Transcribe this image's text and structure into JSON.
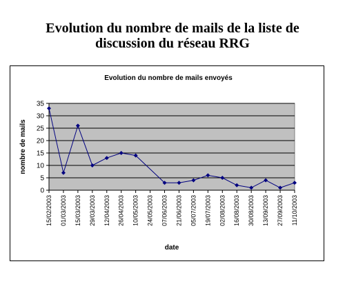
{
  "page_title": "Evolution du nombre de mails de la liste de\ndiscussion du réseau RRG",
  "colors": {
    "plot_background": "#c0c0c0",
    "series_line": "#000080",
    "gridline": "#000000"
  },
  "chart_data": {
    "type": "line",
    "title": "Evolution du nombre de mails envoyés",
    "xlabel": "date",
    "ylabel": "nombre de mails",
    "ylim": [
      0,
      35
    ],
    "yticks": [
      0,
      5,
      10,
      15,
      20,
      25,
      30,
      35
    ],
    "grid": true,
    "legend": "none",
    "categories": [
      "15/02/2003",
      "01/03/2003",
      "15/03/2003",
      "29/03/2003",
      "12/04/2003",
      "26/04/2003",
      "10/05/2003",
      "24/05/2003",
      "07/06/2003",
      "21/06/2003",
      "05/07/2003",
      "19/07/2003",
      "02/08/2003",
      "16/08/2003",
      "30/08/2003",
      "13/09/2003",
      "27/09/2003",
      "11/10/2003"
    ],
    "values": [
      33,
      7,
      26,
      10,
      13,
      15,
      14,
      null,
      3,
      3,
      4,
      6,
      5,
      2,
      1,
      4,
      1,
      3
    ]
  }
}
